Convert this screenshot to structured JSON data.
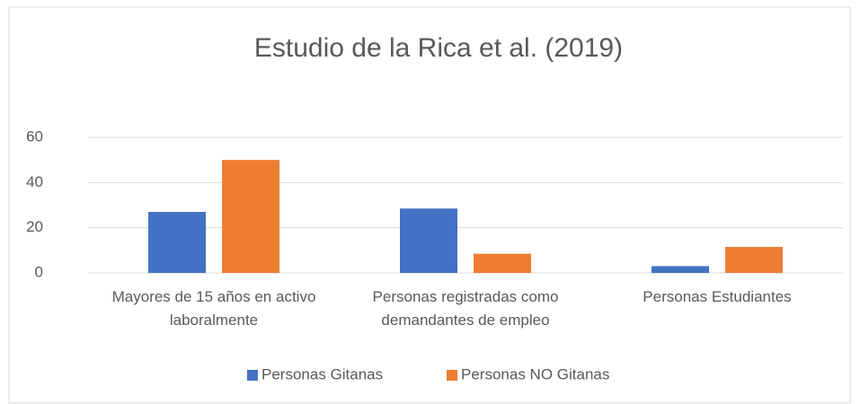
{
  "chart_data": {
    "type": "bar",
    "title": "Estudio de la Rica et al. (2019)",
    "categories": [
      "Mayores de 15 años en activo laboralmente",
      "Personas registradas como demandantes de empleo",
      "Personas Estudiantes"
    ],
    "series": [
      {
        "name": "Personas Gitanas",
        "color": "#4472c4",
        "values": [
          27,
          28.5,
          3
        ]
      },
      {
        "name": "Personas NO Gitanas",
        "color": "#ed7d31",
        "values": [
          50,
          8.5,
          11.5
        ]
      }
    ],
    "ylim": [
      0,
      60
    ],
    "yticks": [
      0,
      20,
      40,
      60
    ],
    "grid": true,
    "legend": "bottom"
  }
}
